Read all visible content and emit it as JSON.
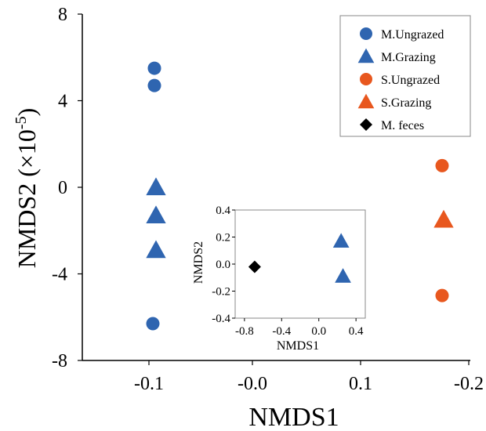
{
  "chart_data": [
    {
      "type": "scatter",
      "title": "",
      "xlabel": "NMDS1",
      "ylabel": "NMDS2 (×10",
      "ylabel_superscript": "-5",
      "ylabel_suffix": ")",
      "x_tick_labels": [
        "-0.1",
        "-0.0",
        "0.1",
        "-0.2"
      ],
      "y_tick_labels": [
        "8",
        "4",
        "0",
        "-4",
        "-8"
      ],
      "ylim": [
        -8,
        8
      ],
      "grid": false,
      "legend_position": "top-right",
      "series": [
        {
          "name": "M.Ungrazed",
          "marker": "circle",
          "color": "#2f65b0",
          "x_tick_index": 0,
          "y": [
            5.5,
            4.7,
            -6.3
          ]
        },
        {
          "name": "M.Grazing",
          "marker": "triangle",
          "color": "#2f65b0",
          "x_tick_index": 0,
          "y": [
            0.0,
            -1.3,
            -2.9
          ]
        },
        {
          "name": "S.Ungrazed",
          "marker": "circle",
          "color": "#e8571e",
          "x_tick_index": 3,
          "y": [
            1.0,
            -5.0
          ]
        },
        {
          "name": "S.Grazing",
          "marker": "triangle",
          "color": "#e8571e",
          "x_tick_index": 3,
          "y": [
            -1.5
          ]
        },
        {
          "name": "M. feces",
          "marker": "diamond",
          "color": "#000000",
          "x_tick_index": null,
          "y": []
        }
      ]
    },
    {
      "type": "scatter",
      "title": "",
      "xlabel": "NMDS1",
      "ylabel": "NMDS2",
      "ylabel_color": "#e8571e",
      "xlim": [
        -0.9,
        0.5
      ],
      "ylim": [
        -0.4,
        0.4
      ],
      "x_ticks": [
        -0.8,
        -0.4,
        0.0,
        0.4
      ],
      "x_tick_labels": [
        "-0.8",
        "-0.4",
        "0.0",
        "0.4"
      ],
      "y_ticks": [
        -0.4,
        -0.2,
        0.0,
        0.2,
        0.4
      ],
      "y_tick_labels": [
        "-0.4",
        "-0.2",
        "0.0",
        "0.2",
        "0.4"
      ],
      "series": [
        {
          "name": "M. feces",
          "marker": "diamond",
          "color": "#000000",
          "points": [
            {
              "x": -0.69,
              "y": -0.02
            }
          ]
        },
        {
          "name": "M.Grazing",
          "marker": "triangle",
          "color": "#2f65b0",
          "points": [
            {
              "x": 0.24,
              "y": 0.17
            },
            {
              "x": 0.26,
              "y": -0.09
            }
          ]
        }
      ]
    }
  ]
}
